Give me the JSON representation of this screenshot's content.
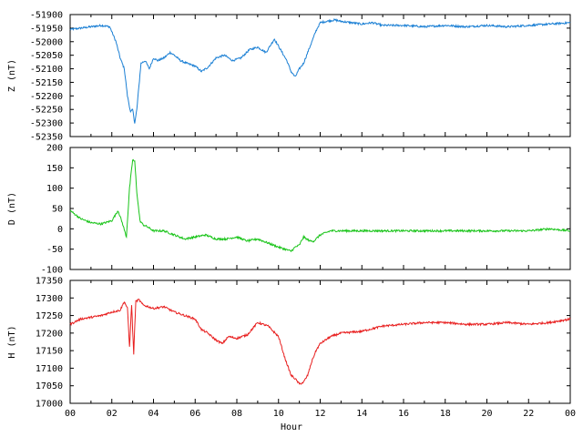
{
  "chart_data": [
    {
      "type": "line",
      "ylabel": "Z (nT)",
      "ylim": [
        -52350,
        -51900
      ],
      "y_ticks": [
        "-51900",
        "-51950",
        "-52000",
        "-52050",
        "-52100",
        "-52150",
        "-52200",
        "-52250",
        "-52300",
        "-52350"
      ],
      "xlim": [
        0,
        24
      ],
      "grid": false,
      "series": [
        {
          "color": "#1a7fd4",
          "x": [
            0,
            0.5,
            1,
            1.5,
            1.9,
            2.2,
            2.4,
            2.6,
            2.75,
            2.9,
            3.0,
            3.1,
            3.2,
            3.4,
            3.6,
            3.8,
            4.0,
            4.2,
            4.5,
            4.8,
            5.0,
            5.3,
            5.6,
            6.0,
            6.3,
            6.6,
            7.0,
            7.4,
            7.8,
            8.2,
            8.6,
            9.0,
            9.4,
            9.8,
            10.1,
            10.4,
            10.6,
            10.8,
            11.0,
            11.2,
            11.5,
            11.8,
            12.0,
            12.3,
            12.7,
            13.0,
            13.5,
            14.0,
            14.5,
            15.0,
            16,
            17,
            18,
            19,
            20,
            21,
            22,
            23,
            24
          ],
          "y": [
            -51955,
            -51950,
            -51945,
            -51940,
            -51945,
            -52000,
            -52060,
            -52100,
            -52200,
            -52260,
            -52250,
            -52300,
            -52250,
            -52080,
            -52070,
            -52100,
            -52060,
            -52070,
            -52060,
            -52040,
            -52050,
            -52070,
            -52080,
            -52090,
            -52110,
            -52095,
            -52060,
            -52050,
            -52070,
            -52060,
            -52030,
            -52020,
            -52040,
            -51990,
            -52030,
            -52070,
            -52110,
            -52130,
            -52100,
            -52080,
            -52020,
            -51960,
            -51930,
            -51925,
            -51920,
            -51925,
            -51930,
            -51935,
            -51930,
            -51940,
            -51940,
            -51945,
            -51940,
            -51945,
            -51940,
            -51945,
            -51940,
            -51935,
            -51930
          ]
        }
      ]
    },
    {
      "type": "line",
      "ylabel": "D (nT)",
      "ylim": [
        -100,
        200
      ],
      "y_ticks": [
        "200",
        "150",
        "100",
        "50",
        "0",
        "-50",
        "-100"
      ],
      "xlim": [
        0,
        24
      ],
      "grid": false,
      "series": [
        {
          "color": "#19c419",
          "x": [
            0,
            0.5,
            1,
            1.5,
            2,
            2.3,
            2.5,
            2.7,
            2.85,
            3.0,
            3.1,
            3.2,
            3.35,
            3.5,
            3.7,
            4.0,
            4.5,
            5.0,
            5.5,
            6.0,
            6.5,
            7,
            7.5,
            8,
            8.5,
            9,
            9.5,
            10,
            10.3,
            10.6,
            10.8,
            11,
            11.2,
            11.5,
            11.7,
            12,
            12.5,
            13,
            14,
            15,
            16,
            17,
            18,
            19,
            20,
            21,
            22,
            23,
            24
          ],
          "y": [
            45,
            25,
            15,
            12,
            20,
            45,
            15,
            -20,
            100,
            170,
            165,
            90,
            20,
            10,
            5,
            -5,
            -5,
            -15,
            -25,
            -20,
            -15,
            -25,
            -25,
            -20,
            -30,
            -25,
            -35,
            -45,
            -50,
            -55,
            -45,
            -40,
            -20,
            -30,
            -30,
            -15,
            -5,
            -5,
            -5,
            -5,
            -5,
            -5,
            -5,
            -5,
            -5,
            -5,
            -5,
            0,
            -5
          ]
        }
      ]
    },
    {
      "type": "line",
      "ylabel": "H (nT)",
      "ylim": [
        17000,
        17350
      ],
      "y_ticks": [
        "17350",
        "17300",
        "17250",
        "17200",
        "17150",
        "17100",
        "17050",
        "17000"
      ],
      "xlim": [
        0,
        24
      ],
      "grid": false,
      "series": [
        {
          "color": "#e81f1f",
          "x": [
            0,
            0.5,
            1,
            1.5,
            2,
            2.4,
            2.6,
            2.75,
            2.85,
            2.95,
            3.05,
            3.15,
            3.3,
            3.5,
            4.0,
            4.5,
            5.0,
            5.5,
            6.0,
            6.3,
            6.6,
            7,
            7.3,
            7.6,
            8,
            8.5,
            9,
            9.5,
            10,
            10.3,
            10.6,
            10.8,
            11,
            11.2,
            11.4,
            11.6,
            11.8,
            12,
            12.5,
            13,
            14,
            15,
            16,
            17,
            18,
            19,
            20,
            21,
            22,
            23,
            24
          ],
          "y": [
            17225,
            17240,
            17245,
            17250,
            17260,
            17265,
            17290,
            17270,
            17160,
            17280,
            17140,
            17290,
            17295,
            17280,
            17270,
            17275,
            17260,
            17250,
            17240,
            17210,
            17200,
            17180,
            17170,
            17190,
            17185,
            17195,
            17230,
            17220,
            17190,
            17130,
            17080,
            17070,
            17055,
            17060,
            17080,
            17120,
            17150,
            17170,
            17190,
            17200,
            17205,
            17220,
            17225,
            17230,
            17230,
            17225,
            17225,
            17230,
            17225,
            17230,
            17240
          ]
        }
      ]
    }
  ],
  "x_axis": {
    "tick_labels": [
      "00",
      "02",
      "04",
      "06",
      "08",
      "10",
      "12",
      "14",
      "16",
      "18",
      "20",
      "22",
      "00"
    ],
    "label": "Hour"
  }
}
